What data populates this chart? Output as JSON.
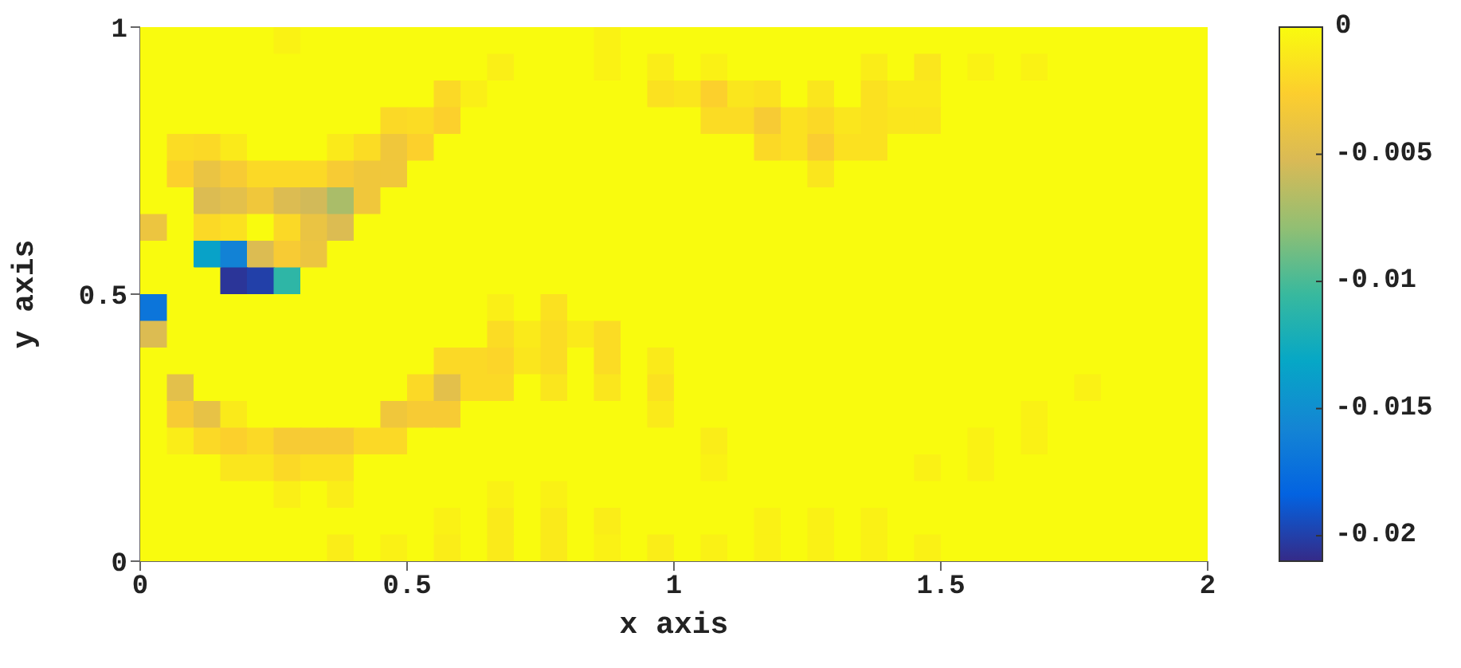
{
  "chart_data": {
    "type": "heatmap",
    "xlabel": "x axis",
    "ylabel": "y axis",
    "x": [
      0.025,
      0.075,
      0.125,
      0.175,
      0.225,
      0.275,
      0.325,
      0.375,
      0.425,
      0.475,
      0.525,
      0.575,
      0.625,
      0.675,
      0.725,
      0.775,
      0.825,
      0.875,
      0.925,
      0.975,
      1.025,
      1.075,
      1.125,
      1.175,
      1.225,
      1.275,
      1.325,
      1.375,
      1.425,
      1.475,
      1.525,
      1.575,
      1.625,
      1.675,
      1.725,
      1.775,
      1.825,
      1.875,
      1.925,
      1.975
    ],
    "xlim": [
      0,
      2
    ],
    "xticks": [
      0,
      0.5,
      1,
      1.5,
      2
    ],
    "ylim": [
      0,
      1
    ],
    "yticks": [
      0,
      0.5,
      1
    ],
    "clim": [
      -0.021,
      0
    ],
    "cticks": [
      0,
      -0.005,
      -0.01,
      -0.015,
      -0.02
    ],
    "cells": [
      [
        0,
        0,
        0,
        0,
        0,
        -0.0005,
        0,
        0,
        0,
        0,
        0,
        0,
        0,
        0,
        0,
        0,
        0,
        -0.0005,
        0,
        0,
        0,
        0,
        0,
        0,
        0,
        0,
        0,
        0,
        0,
        0,
        0,
        0,
        0,
        0,
        0,
        0,
        0,
        0,
        0,
        0
      ],
      [
        0,
        0,
        0,
        0,
        0,
        0,
        0,
        0,
        0,
        0,
        0,
        0,
        0,
        -0.0007,
        0,
        0,
        0,
        -0.0005,
        0,
        -0.0008,
        0,
        -0.0006,
        0,
        0,
        0,
        0,
        0,
        -0.0008,
        0,
        -0.0012,
        0,
        -0.0005,
        0,
        -0.0005,
        0,
        0,
        0,
        0,
        0,
        0
      ],
      [
        0,
        0,
        0,
        0,
        0,
        0,
        0,
        0,
        0,
        0,
        0,
        -0.002,
        -0.0007,
        0,
        0,
        0,
        0,
        0,
        0,
        -0.0015,
        -0.0012,
        -0.0025,
        -0.0012,
        -0.0015,
        0,
        -0.0012,
        0,
        -0.0015,
        -0.001,
        -0.001,
        0,
        0,
        0,
        0,
        0,
        0,
        0,
        0,
        0,
        0
      ],
      [
        0,
        0,
        0,
        0,
        0,
        0,
        0,
        0,
        0,
        -0.002,
        -0.0018,
        -0.0025,
        0,
        0,
        0,
        0,
        0,
        0,
        0,
        0,
        0,
        -0.0018,
        -0.0018,
        -0.003,
        -0.0015,
        -0.002,
        -0.0012,
        -0.0015,
        -0.0012,
        -0.0012,
        0,
        0,
        0,
        0,
        0,
        0,
        0,
        0,
        0,
        0
      ],
      [
        0,
        -0.0018,
        -0.002,
        -0.001,
        0,
        0,
        0,
        -0.001,
        -0.0018,
        -0.0035,
        -0.0025,
        0,
        0,
        0,
        0,
        0,
        0,
        0,
        0,
        0,
        0,
        0,
        0,
        -0.002,
        -0.0015,
        -0.0028,
        -0.0015,
        -0.0015,
        0,
        0,
        0,
        0,
        0,
        0,
        0,
        0,
        0,
        0,
        0,
        0
      ],
      [
        0,
        -0.0025,
        -0.004,
        -0.003,
        -0.002,
        -0.002,
        -0.002,
        -0.003,
        -0.0035,
        -0.0035,
        0,
        0,
        0,
        0,
        0,
        0,
        0,
        0,
        0,
        0,
        0,
        0,
        0,
        0,
        0,
        -0.0012,
        0,
        0,
        0,
        0,
        0,
        0,
        0,
        0,
        0,
        0,
        0,
        0,
        0,
        0
      ],
      [
        0,
        0,
        -0.005,
        -0.0045,
        -0.0035,
        -0.005,
        -0.0055,
        -0.007,
        -0.0035,
        0,
        0,
        0,
        0,
        0,
        0,
        0,
        0,
        0,
        0,
        0,
        0,
        0,
        0,
        0,
        0,
        0,
        0,
        0,
        0,
        0,
        0,
        0,
        0,
        0,
        0,
        0,
        0,
        0,
        0,
        0
      ],
      [
        -0.0038,
        0,
        -0.002,
        -0.0015,
        0,
        -0.002,
        -0.004,
        -0.005,
        0,
        0,
        0,
        0,
        0,
        0,
        0,
        0,
        0,
        0,
        0,
        0,
        0,
        0,
        0,
        0,
        0,
        0,
        0,
        0,
        0,
        0,
        0,
        0,
        0,
        0,
        0,
        0,
        0,
        0,
        0,
        0
      ],
      [
        0,
        0,
        -0.0135,
        -0.016,
        -0.005,
        -0.003,
        -0.0038,
        0,
        0,
        0,
        0,
        0,
        0,
        0,
        0,
        0,
        0,
        0,
        0,
        0,
        0,
        0,
        0,
        0,
        0,
        0,
        0,
        0,
        0,
        0,
        0,
        0,
        0,
        0,
        0,
        0,
        0,
        0,
        0,
        0
      ],
      [
        0,
        0,
        0,
        -0.0205,
        -0.02,
        -0.011,
        0,
        0,
        0,
        0,
        0,
        0,
        0,
        0,
        0,
        0,
        0,
        0,
        0,
        0,
        0,
        0,
        0,
        0,
        0,
        0,
        0,
        0,
        0,
        0,
        0,
        0,
        0,
        0,
        0,
        0,
        0,
        0,
        0,
        0
      ],
      [
        -0.017,
        0,
        0,
        0,
        0,
        0,
        0,
        0,
        0,
        0,
        0,
        0,
        0,
        -0.0007,
        0,
        -0.0015,
        0,
        0,
        0,
        0,
        0,
        0,
        0,
        0,
        0,
        0,
        0,
        0,
        0,
        0,
        0,
        0,
        0,
        0,
        0,
        0,
        0,
        0,
        0,
        0
      ],
      [
        -0.005,
        0,
        0,
        0,
        0,
        0,
        0,
        0,
        0,
        0,
        0,
        0,
        0,
        -0.0018,
        -0.001,
        -0.0018,
        -0.001,
        -0.0018,
        0,
        0,
        0,
        0,
        0,
        0,
        0,
        0,
        0,
        0,
        0,
        0,
        0,
        0,
        0,
        0,
        0,
        0,
        0,
        0,
        0,
        0
      ],
      [
        0,
        0,
        0,
        0,
        0,
        0,
        0,
        0,
        0,
        0,
        0,
        -0.002,
        -0.002,
        -0.0022,
        -0.0012,
        -0.0018,
        0,
        -0.0018,
        0,
        -0.001,
        0,
        0,
        0,
        0,
        0,
        0,
        0,
        0,
        0,
        0,
        0,
        0,
        0,
        0,
        0,
        0,
        0,
        0,
        0,
        0
      ],
      [
        0,
        -0.0045,
        0,
        0,
        0,
        0,
        0,
        0,
        0,
        0,
        -0.002,
        -0.0045,
        -0.002,
        -0.002,
        0,
        -0.0012,
        0,
        -0.0012,
        0,
        -0.0015,
        0,
        0,
        0,
        0,
        0,
        0,
        0,
        0,
        0,
        0,
        0,
        0,
        0,
        0,
        0,
        -0.0006,
        0,
        0,
        0,
        0
      ],
      [
        0,
        -0.003,
        -0.0042,
        -0.001,
        0,
        0,
        0,
        0,
        0,
        -0.0035,
        -0.003,
        -0.003,
        0,
        0,
        0,
        0,
        0,
        0,
        0,
        -0.001,
        0,
        0,
        0,
        0,
        0,
        0,
        0,
        0,
        0,
        0,
        0,
        0,
        0,
        -0.0006,
        0,
        0,
        0,
        0,
        0,
        0
      ],
      [
        0,
        -0.0008,
        -0.002,
        -0.0025,
        -0.002,
        -0.003,
        -0.003,
        -0.003,
        -0.002,
        -0.002,
        0,
        0,
        0,
        0,
        0,
        0,
        0,
        0,
        0,
        0,
        0,
        -0.0008,
        0,
        0,
        0,
        0,
        0,
        0,
        0,
        0,
        0,
        -0.0005,
        0,
        -0.0006,
        0,
        0,
        0,
        0,
        0,
        0
      ],
      [
        0,
        0,
        0,
        -0.0012,
        -0.0012,
        -0.002,
        -0.0015,
        -0.0015,
        0,
        0,
        0,
        0,
        0,
        0,
        0,
        0,
        0,
        0,
        0,
        0,
        0,
        -0.0005,
        0,
        0,
        0,
        0,
        0,
        0,
        0,
        -0.0006,
        0,
        -0.0005,
        0,
        0,
        0,
        0,
        0,
        0,
        0,
        0
      ],
      [
        0,
        0,
        0,
        0,
        0,
        -0.0007,
        0,
        -0.0008,
        0,
        0,
        0,
        0,
        0,
        -0.0006,
        0,
        -0.0006,
        0,
        0,
        0,
        0,
        0,
        0,
        0,
        0,
        0,
        0,
        0,
        0,
        0,
        0,
        0,
        0,
        0,
        0,
        0,
        0,
        0,
        0,
        0,
        0
      ],
      [
        0,
        0,
        0,
        0,
        0,
        0,
        0,
        0,
        0,
        0,
        0,
        -0.0006,
        0,
        -0.001,
        0,
        -0.001,
        0,
        -0.0008,
        0,
        0,
        0,
        0,
        0,
        -0.0006,
        0,
        -0.0006,
        0,
        -0.0006,
        0,
        0,
        0,
        0,
        0,
        0,
        0,
        0,
        0,
        0,
        0,
        0
      ],
      [
        0,
        0,
        0,
        0,
        0,
        0,
        0,
        -0.0008,
        0,
        -0.0006,
        0,
        -0.0008,
        0,
        -0.001,
        0,
        -0.001,
        0,
        -0.0006,
        0,
        -0.0008,
        0,
        -0.0006,
        0,
        -0.0006,
        0,
        -0.0006,
        0,
        -0.0006,
        0,
        -0.0006,
        0,
        0,
        0,
        0,
        0,
        0,
        0,
        0,
        0,
        0
      ]
    ]
  }
}
